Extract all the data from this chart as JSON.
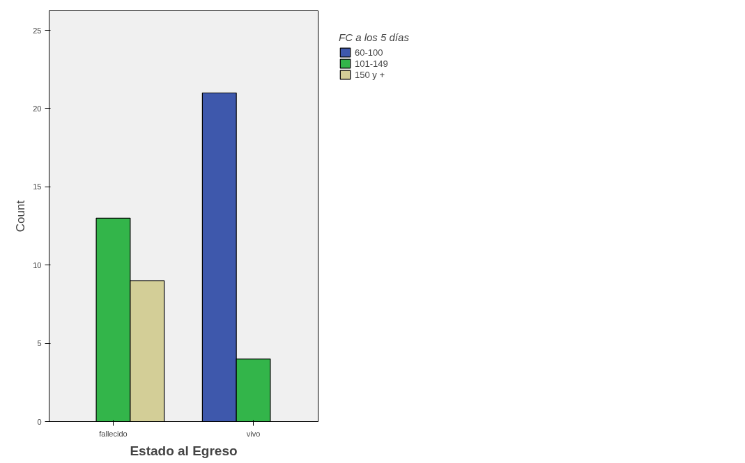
{
  "chart_data": {
    "type": "bar",
    "xlabel": "Estado al Egreso",
    "ylabel": "Count",
    "legend_title": "FC a los 5 días",
    "categories": [
      "fallecido",
      "vivo"
    ],
    "series": [
      {
        "name": "60-100",
        "color": "#3e58ac",
        "values": [
          null,
          21
        ]
      },
      {
        "name": "101-149",
        "color": "#33b54a",
        "values": [
          13,
          4
        ]
      },
      {
        "name": "150 y +",
        "color": "#d3ce97",
        "values": [
          9,
          null
        ]
      }
    ],
    "ylim": [
      0,
      26.25
    ],
    "yticks": [
      0,
      5,
      10,
      15,
      20,
      25
    ],
    "grid": false,
    "legend": "top right"
  }
}
